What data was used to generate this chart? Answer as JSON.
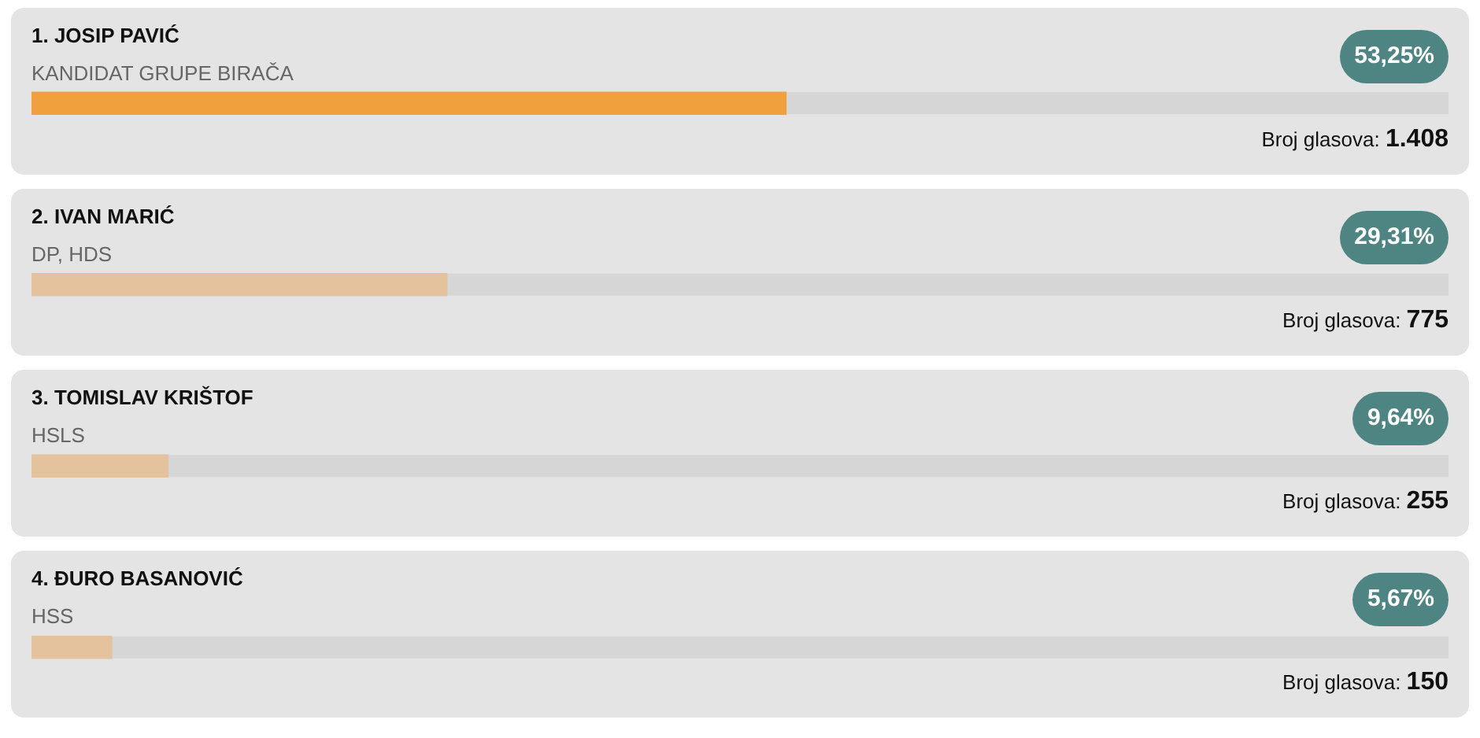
{
  "chart_data": {
    "type": "bar",
    "orientation": "horizontal",
    "categories": [
      "1. JOSIP PAVIĆ",
      "2. IVAN MARIĆ",
      "3. TOMISLAV KRIŠTOF",
      "4. ĐURO BASANOVIĆ"
    ],
    "values": [
      53.25,
      29.31,
      9.64,
      5.67
    ],
    "colors": [
      "#f0a03c",
      "#e3c29d",
      "#e3c29d",
      "#e3c29d"
    ],
    "value_labels": [
      "53,25%",
      "29,31%",
      "9,64%",
      "5,67%"
    ],
    "xlim": [
      0,
      100
    ],
    "grid": false,
    "legend": false,
    "annotations": [
      "KANDIDAT GRUPE BIRAČA",
      "Broj glasova: 1.408",
      "DP, HDS",
      "Broj glasova: 775",
      "HSLS",
      "Broj glasova: 255",
      "HSS",
      "Broj glasova: 150"
    ]
  }
}
